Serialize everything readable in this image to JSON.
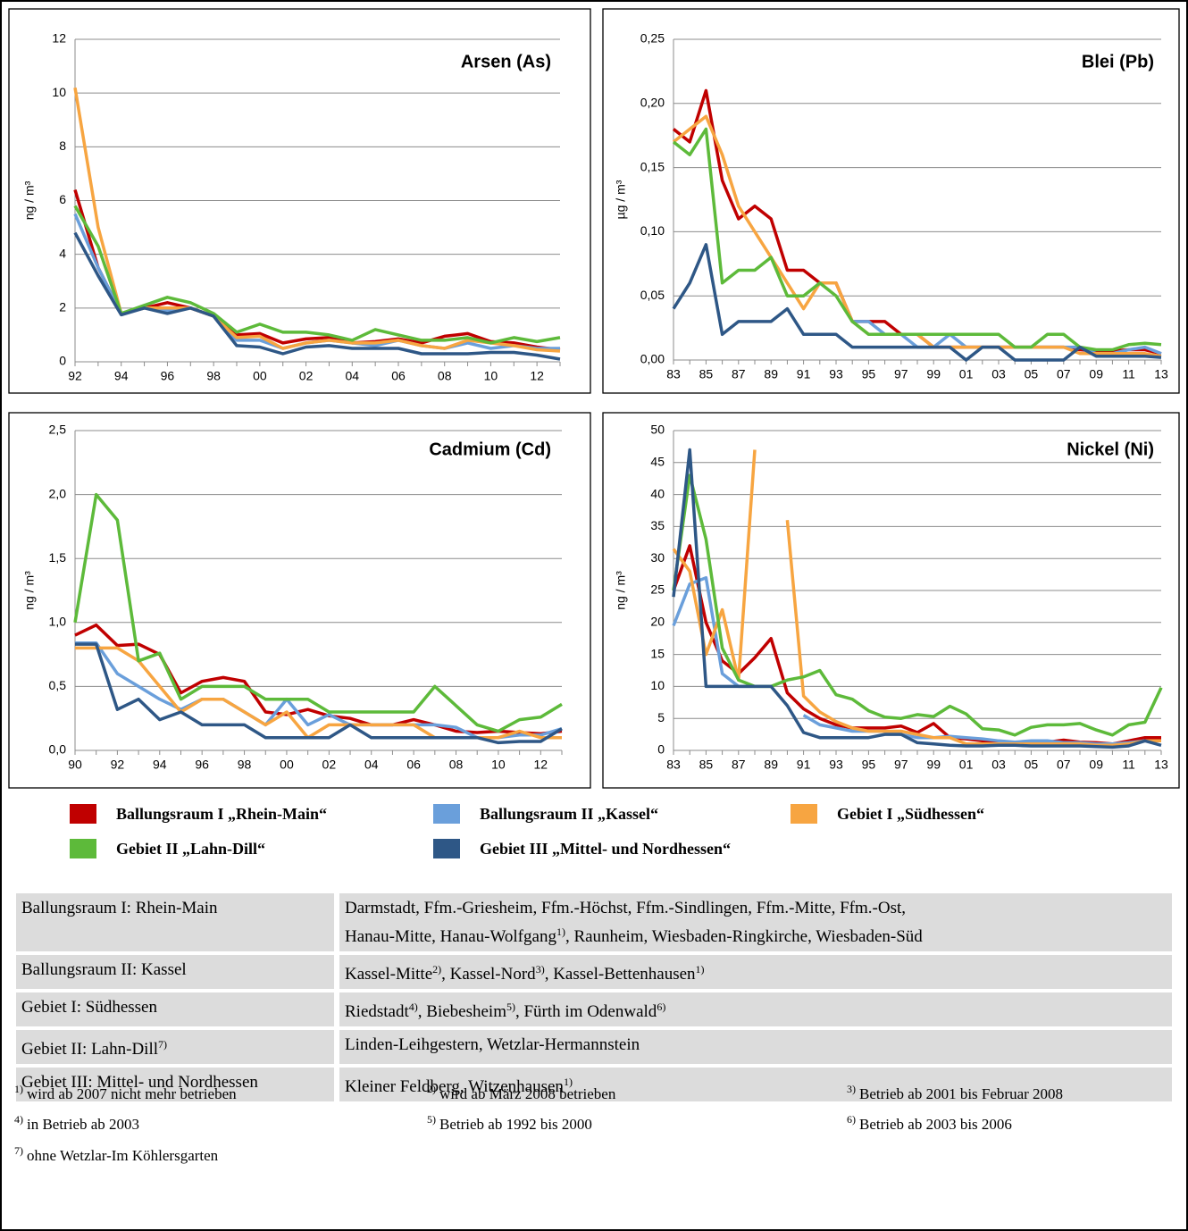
{
  "chart_data": [
    {
      "type": "line",
      "title": "Arsen (As)",
      "y_label": "ng / m³",
      "x": [
        "92",
        null,
        "94",
        null,
        "96",
        null,
        "98",
        null,
        "00",
        null,
        "02",
        null,
        "04",
        null,
        "06",
        null,
        "08",
        null,
        "10",
        null,
        "12",
        null
      ],
      "ylim": [
        0,
        12
      ],
      "yticks": [
        0,
        2,
        4,
        6,
        8,
        10,
        12
      ],
      "grid": true,
      "series": [
        {
          "values": [
            6.4,
            3.5,
            1.8,
            2.0,
            2.2,
            2.0,
            1.7,
            1.0,
            1.05,
            0.7,
            0.85,
            0.9,
            0.7,
            0.75,
            0.85,
            0.7,
            0.95,
            1.05,
            0.75,
            0.7,
            0.55,
            0.45
          ]
        },
        {
          "values": [
            5.5,
            3.5,
            1.8,
            2.0,
            1.9,
            2.0,
            1.7,
            0.8,
            0.8,
            0.5,
            0.7,
            0.8,
            0.7,
            0.6,
            0.8,
            0.6,
            0.5,
            0.7,
            0.5,
            0.6,
            0.5,
            0.5
          ]
        },
        {
          "values": [
            10.2,
            5.0,
            1.8,
            2.0,
            2.0,
            2.0,
            1.7,
            0.9,
            0.95,
            0.5,
            0.7,
            0.8,
            0.7,
            0.7,
            0.8,
            0.6,
            0.5,
            0.8,
            0.7,
            0.6,
            0.45,
            0.4
          ]
        },
        {
          "values": [
            5.8,
            4.3,
            1.8,
            2.1,
            2.4,
            2.2,
            1.8,
            1.1,
            1.4,
            1.1,
            1.1,
            1.0,
            0.8,
            1.2,
            1.0,
            0.8,
            0.8,
            0.9,
            0.7,
            0.9,
            0.75,
            0.9
          ]
        },
        {
          "values": [
            4.8,
            3.2,
            1.75,
            2.0,
            1.8,
            2.0,
            1.7,
            0.6,
            0.55,
            0.3,
            0.55,
            0.6,
            0.5,
            0.5,
            0.5,
            0.3,
            0.3,
            0.3,
            0.35,
            0.35,
            0.25,
            0.1
          ]
        }
      ]
    },
    {
      "type": "line",
      "title": "Blei (Pb)",
      "y_label": "µg / m³",
      "x": [
        "83",
        null,
        "85",
        null,
        "87",
        null,
        "89",
        null,
        "91",
        null,
        "93",
        null,
        "95",
        null,
        "97",
        null,
        "99",
        null,
        "01",
        null,
        "03",
        null,
        "05",
        null,
        "07",
        null,
        "09",
        null,
        "11",
        null,
        "13"
      ],
      "ylim": [
        0,
        0.25
      ],
      "yticks": [
        {
          "value": 0,
          "label": "0,00"
        },
        {
          "value": 0.05,
          "label": "0,05"
        },
        {
          "value": 0.1,
          "label": "0,10"
        },
        {
          "value": 0.15,
          "label": "0,15"
        },
        {
          "value": 0.2,
          "label": "0,20"
        },
        {
          "value": 0.25,
          "label": "0,25"
        }
      ],
      "grid": true,
      "series": [
        {
          "values": [
            0.18,
            0.17,
            0.21,
            0.14,
            0.11,
            0.12,
            0.11,
            0.07,
            0.07,
            0.06,
            0.06,
            0.03,
            0.03,
            0.03,
            0.02,
            0.02,
            0.01,
            0.01,
            0.01,
            0.01,
            0.01,
            0.01,
            0.01,
            0.01,
            0.01,
            0.008,
            0.007,
            0.007,
            0.008,
            0.008,
            0.005
          ]
        },
        {
          "values": [
            null,
            null,
            null,
            null,
            null,
            null,
            null,
            null,
            null,
            null,
            null,
            0.03,
            0.03,
            0.02,
            0.02,
            0.01,
            0.01,
            0.02,
            0.01,
            0.01,
            0.01,
            0.01,
            0.01,
            0.01,
            0.01,
            0.01,
            0.005,
            0.005,
            0.008,
            0.01,
            0.005
          ]
        },
        {
          "values": [
            0.17,
            0.18,
            0.19,
            0.16,
            0.12,
            0.1,
            0.08,
            0.06,
            0.04,
            0.06,
            0.06,
            0.03,
            0.02,
            0.02,
            0.02,
            0.02,
            0.01,
            0.01,
            0.01,
            0.01,
            0.01,
            0.01,
            0.01,
            0.01,
            0.01,
            0.005,
            0.005,
            0.005,
            0.005,
            0.005,
            0.003
          ]
        },
        {
          "values": [
            0.17,
            0.16,
            0.18,
            0.06,
            0.07,
            0.07,
            0.08,
            0.05,
            0.05,
            0.06,
            0.05,
            0.03,
            0.02,
            0.02,
            0.02,
            0.02,
            0.02,
            0.02,
            0.02,
            0.02,
            0.02,
            0.01,
            0.01,
            0.02,
            0.02,
            0.01,
            0.008,
            0.008,
            0.012,
            0.013,
            0.012
          ]
        },
        {
          "values": [
            0.04,
            0.06,
            0.09,
            0.02,
            0.03,
            0.03,
            0.03,
            0.04,
            0.02,
            0.02,
            0.02,
            0.01,
            0.01,
            0.01,
            0.01,
            0.01,
            0.01,
            0.01,
            0,
            0.01,
            0.01,
            0,
            0,
            0,
            0,
            0.01,
            0.003,
            0.003,
            0.003,
            0.003,
            0.002
          ]
        }
      ]
    },
    {
      "type": "line",
      "title": "Cadmium (Cd)",
      "y_label": "ng / m³",
      "x": [
        "90",
        null,
        "92",
        null,
        "94",
        null,
        "96",
        null,
        "98",
        null,
        "00",
        null,
        "02",
        null,
        "04",
        null,
        "06",
        null,
        "08",
        null,
        "10",
        null,
        "12",
        null
      ],
      "ylim": [
        0,
        2.5
      ],
      "yticks": [
        {
          "value": 0,
          "label": "0,0"
        },
        {
          "value": 0.5,
          "label": "0,5"
        },
        {
          "value": 1,
          "label": "1,0"
        },
        {
          "value": 1.5,
          "label": "1,5"
        },
        {
          "value": 2,
          "label": "2,0"
        },
        {
          "value": 2.5,
          "label": "2,5"
        }
      ],
      "grid": true,
      "series": [
        {
          "values": [
            0.9,
            0.98,
            0.82,
            0.83,
            0.75,
            0.45,
            0.54,
            0.57,
            0.54,
            0.3,
            0.28,
            0.32,
            0.27,
            0.25,
            0.2,
            0.2,
            0.24,
            0.2,
            0.15,
            0.14,
            0.15,
            0.14,
            0.13,
            0.15
          ]
        },
        {
          "values": [
            0.84,
            0.84,
            0.6,
            0.5,
            0.4,
            0.32,
            0.4,
            0.4,
            0.3,
            0.2,
            0.4,
            0.2,
            0.28,
            0.2,
            0.2,
            0.2,
            0.2,
            0.2,
            0.18,
            0.1,
            0.1,
            0.12,
            0.12,
            0.17
          ]
        },
        {
          "values": [
            0.8,
            0.8,
            0.8,
            0.7,
            0.5,
            0.3,
            0.4,
            0.4,
            0.3,
            0.2,
            0.3,
            0.1,
            0.2,
            0.2,
            0.2,
            0.2,
            0.2,
            0.1,
            0.1,
            0.1,
            0.1,
            0.15,
            0.1,
            0.1
          ]
        },
        {
          "values": [
            1.0,
            2.0,
            1.8,
            0.7,
            0.76,
            0.4,
            0.5,
            0.5,
            0.5,
            0.4,
            0.4,
            0.4,
            0.3,
            0.3,
            0.3,
            0.3,
            0.3,
            0.5,
            0.35,
            0.2,
            0.15,
            0.24,
            0.26,
            0.36
          ]
        },
        {
          "values": [
            0.83,
            0.83,
            0.32,
            0.4,
            0.24,
            0.3,
            0.2,
            0.2,
            0.2,
            0.1,
            0.1,
            0.1,
            0.1,
            0.2,
            0.1,
            0.1,
            0.1,
            0.1,
            0.1,
            0.1,
            0.06,
            0.07,
            0.07,
            0.17
          ]
        }
      ]
    },
    {
      "type": "line",
      "title": "Nickel (Ni)",
      "y_label": "ng / m³",
      "x": [
        "83",
        null,
        "85",
        null,
        "87",
        null,
        "89",
        null,
        "91",
        null,
        "93",
        null,
        "95",
        null,
        "97",
        null,
        "99",
        null,
        "01",
        null,
        "03",
        null,
        "05",
        null,
        "07",
        null,
        "09",
        null,
        "11",
        null,
        "13"
      ],
      "ylim": [
        0,
        50
      ],
      "yticks": [
        0,
        5,
        10,
        15,
        20,
        25,
        30,
        35,
        40,
        45,
        50
      ],
      "grid": true,
      "series": [
        {
          "values": [
            25,
            32,
            20,
            14,
            12,
            14.5,
            17.5,
            9,
            6.5,
            5,
            4,
            3.5,
            3.5,
            3.5,
            3.8,
            2.8,
            4.2,
            2,
            1.8,
            1.5,
            1.2,
            1,
            1.2,
            1.3,
            1.6,
            1.3,
            1.2,
            1,
            1.5,
            2,
            2
          ]
        },
        {
          "values": [
            19.5,
            26,
            27,
            12,
            10,
            10,
            null,
            null,
            5.5,
            4,
            3.5,
            3,
            3,
            3,
            2.5,
            2,
            2,
            2.2,
            2,
            1.8,
            1.5,
            1.3,
            1.5,
            1.5,
            1.2,
            1.2,
            1,
            1,
            1.2,
            1.5,
            1.5
          ]
        },
        {
          "values": [
            31.5,
            28,
            15,
            22,
            11,
            47,
            null,
            36,
            8.5,
            6,
            4.5,
            3.5,
            3,
            3,
            3,
            2.5,
            2,
            2,
            1,
            1,
            1,
            1,
            1,
            1,
            1,
            1,
            0.8,
            0.8,
            1,
            1.5,
            1.5
          ]
        },
        {
          "values": [
            25,
            43,
            33,
            16,
            11,
            10,
            10,
            11,
            11.5,
            12.5,
            8.7,
            8,
            6.2,
            5.2,
            5,
            5.6,
            5.3,
            6.9,
            5.7,
            3.4,
            3.2,
            2.4,
            3.6,
            4,
            4,
            4.2,
            3.2,
            2.4,
            4,
            4.4,
            9.8
          ]
        },
        {
          "values": [
            24,
            47,
            10,
            10,
            10,
            10,
            10,
            7,
            2.8,
            2,
            2,
            2,
            2,
            2.5,
            2.5,
            1.2,
            1,
            0.8,
            0.7,
            0.7,
            0.8,
            0.8,
            0.7,
            0.7,
            0.7,
            0.7,
            0.6,
            0.5,
            0.7,
            1.5,
            0.8
          ]
        }
      ]
    }
  ],
  "legend": [
    {
      "name": "Ballungsraum I „Rhein-Main“",
      "color": "#c00000"
    },
    {
      "name": "Ballungsraum II „Kassel“",
      "color": "#6a9fdb"
    },
    {
      "name": "Gebiet I „Südhessen“",
      "color": "#f7a541"
    },
    {
      "name": "Gebiet II „Lahn-Dill“",
      "color": "#5dba3a"
    },
    {
      "name": "Gebiet III „Mittel- und Nordhessen“",
      "color": "#2e5786"
    }
  ],
  "table": {
    "rows": [
      {
        "area": [
          {
            "text": "Ballungsraum I: Rhein-Main"
          }
        ],
        "stations": [
          [
            {
              "text": "Darmstadt, Ffm.-Griesheim, Ffm.-Höchst, Ffm.-Sindlingen, Ffm.-Mitte, Ffm.-Ost,"
            }
          ],
          [
            {
              "text": "Hanau-Mitte, Hanau-Wolfgang",
              "sup": "1)"
            },
            {
              "text": ", Raunheim, Wiesbaden-Ringkirche, Wiesbaden-Süd"
            }
          ]
        ]
      },
      {
        "area": [
          {
            "text": "Ballungsraum II: Kassel"
          }
        ],
        "stations": [
          [
            {
              "text": "Kassel-Mitte",
              "sup": "2)"
            },
            {
              "text": ", Kassel-Nord",
              "sup": "3)"
            },
            {
              "text": ", Kassel-Bettenhausen",
              "sup": "1)"
            }
          ]
        ]
      },
      {
        "area": [
          {
            "text": "Gebiet I: Südhessen"
          }
        ],
        "stations": [
          [
            {
              "text": "Riedstadt",
              "sup": "4)"
            },
            {
              "text": ", Biebesheim",
              "sup": "5)"
            },
            {
              "text": ", Fürth im Odenwald",
              "sup": "6)"
            }
          ]
        ]
      },
      {
        "area": [
          {
            "text": "Gebiet II: Lahn-Dill",
            "sup": "7)"
          }
        ],
        "stations": [
          [
            {
              "text": "Linden-Leihgestern, Wetzlar-Hermannstein"
            }
          ]
        ]
      },
      {
        "area": [
          {
            "text": "Gebiet III: Mittel- und Nordhessen"
          }
        ],
        "stations": [
          [
            {
              "text": "Kleiner Feldberg, Witzenhausen",
              "sup": "1)"
            }
          ]
        ]
      }
    ]
  },
  "footnotes": [
    {
      "mark": "1)",
      "text": "wird ab 2007 nicht mehr betrieben"
    },
    {
      "mark": "2)",
      "text": "wird ab März 2008 betrieben"
    },
    {
      "mark": "3)",
      "text": "Betrieb ab 2001 bis Februar 2008"
    },
    {
      "mark": "4)",
      "text": "in Betrieb ab 2003"
    },
    {
      "mark": "5)",
      "text": "Betrieb ab 1992 bis 2000"
    },
    {
      "mark": "6)",
      "text": "Betrieb ab 2003 bis 2006"
    },
    {
      "mark": "7)",
      "text": "ohne Wetzlar-Im Köhlersgarten"
    }
  ]
}
